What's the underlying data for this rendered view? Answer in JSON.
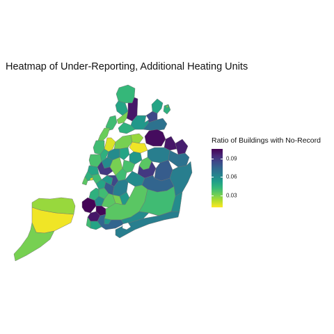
{
  "title": "Heatmap of Under-Reporting, Additional Heating Units",
  "legend": {
    "title": "Ratio of Buildings with No-Record",
    "ticks": [
      {
        "label": "0.09",
        "value": 0.09
      },
      {
        "label": "0.06",
        "value": 0.06
      },
      {
        "label": "0.03",
        "value": 0.03
      }
    ],
    "scale_min": 0.01,
    "scale_max": 0.106,
    "palette": "viridis (reversed)",
    "color_stops": [
      "#fde725",
      "#b5de2b",
      "#6ece58",
      "#35b779",
      "#1f9e89",
      "#26828e",
      "#31688e",
      "#3e4989",
      "#482878",
      "#440154"
    ]
  },
  "chart_data": {
    "type": "heatmap",
    "subtype": "choropleth",
    "title": "Heatmap of Under-Reporting, Additional Heating Units",
    "color_scale": {
      "title": "Ratio of Buildings with No-Record",
      "range": [
        0.01,
        0.106
      ],
      "ticks": [
        0.03,
        0.06,
        0.09
      ],
      "legend_position": "right"
    },
    "grid": false,
    "regions": [
      {
        "id": "si-north",
        "value": 0.025
      },
      {
        "id": "si-mid",
        "value": 0.012
      },
      {
        "id": "si-south",
        "value": 0.03
      },
      {
        "id": "bx-riverdale",
        "value": 0.042
      },
      {
        "id": "bx-fieldston",
        "value": 0.05
      },
      {
        "id": "bx-wakefield",
        "value": 0.1
      },
      {
        "id": "bx-coop",
        "value": 0.05
      },
      {
        "id": "bx-pelham",
        "value": 0.045
      },
      {
        "id": "bx-kingsbridge",
        "value": 0.03
      },
      {
        "id": "bx-fordham",
        "value": 0.055
      },
      {
        "id": "bx-parkchester",
        "value": 0.085
      },
      {
        "id": "bx-soundview",
        "value": 0.07
      },
      {
        "id": "bx-southbronx",
        "value": 0.045
      },
      {
        "id": "mn-inwood",
        "value": 0.04
      },
      {
        "id": "mn-washhts",
        "value": 0.032
      },
      {
        "id": "mn-harlem",
        "value": 0.015
      },
      {
        "id": "mn-uws",
        "value": 0.04
      },
      {
        "id": "mn-ues",
        "value": 0.045
      },
      {
        "id": "mn-midtown",
        "value": 0.038
      },
      {
        "id": "mn-chelsea",
        "value": 0.05
      },
      {
        "id": "mn-village",
        "value": 0.045
      },
      {
        "id": "mn-lower",
        "value": 0.04
      },
      {
        "id": "mn-fidi",
        "value": 0.035
      },
      {
        "id": "qn-astoria",
        "value": 0.03
      },
      {
        "id": "qn-lic",
        "value": 0.06
      },
      {
        "id": "qn-laguardia",
        "value": 0.025
      },
      {
        "id": "qn-flushing",
        "value": 0.103
      },
      {
        "id": "qn-bayside",
        "value": 0.1
      },
      {
        "id": "qn-littleneck",
        "value": 0.098
      },
      {
        "id": "qn-jackheights",
        "value": 0.012
      },
      {
        "id": "qn-elmhurst",
        "value": 0.05
      },
      {
        "id": "qn-corona",
        "value": 0.055
      },
      {
        "id": "qn-freshmeadows",
        "value": 0.065
      },
      {
        "id": "qn-glenoaks",
        "value": 0.07
      },
      {
        "id": "qn-woodside",
        "value": 0.035
      },
      {
        "id": "qn-forest",
        "value": 0.038
      },
      {
        "id": "qn-kewgardens",
        "value": 0.09
      },
      {
        "id": "qn-jamaica",
        "value": 0.078
      },
      {
        "id": "qn-queensvillage",
        "value": 0.065
      },
      {
        "id": "qn-ridgewood",
        "value": 0.04
      },
      {
        "id": "qn-ozone",
        "value": 0.06
      },
      {
        "id": "qn-southjamaica",
        "value": 0.075
      },
      {
        "id": "qn-rockaway",
        "value": 0.065
      },
      {
        "id": "bk-greenpoint",
        "value": 0.06
      },
      {
        "id": "bk-williamsburg",
        "value": 0.09
      },
      {
        "id": "bk-bushwick",
        "value": 0.03
      },
      {
        "id": "bk-brooklynhts",
        "value": 0.05
      },
      {
        "id": "bk-fortgreene",
        "value": 0.055
      },
      {
        "id": "bk-bedstuy",
        "value": 0.085
      },
      {
        "id": "bk-parkslope",
        "value": 0.04
      },
      {
        "id": "bk-crownhts",
        "value": 0.078
      },
      {
        "id": "bk-eastny",
        "value": 0.065
      },
      {
        "id": "bk-redhook",
        "value": 0.045
      },
      {
        "id": "bk-sunsetpark",
        "value": 0.06
      },
      {
        "id": "bk-boropark",
        "value": 0.105
      },
      {
        "id": "bk-flatbush",
        "value": 0.035
      },
      {
        "id": "bk-eastflatbush",
        "value": 0.03
      },
      {
        "id": "bk-brownsville",
        "value": 0.055
      },
      {
        "id": "bk-bayridge",
        "value": 0.105
      },
      {
        "id": "bk-dykerhts",
        "value": 0.1
      },
      {
        "id": "bk-bensonhurst",
        "value": 0.05
      },
      {
        "id": "bk-midwood",
        "value": 0.035
      },
      {
        "id": "bk-flatlands",
        "value": 0.04
      },
      {
        "id": "bk-canarsie",
        "value": 0.06
      },
      {
        "id": "bk-coneyisland",
        "value": 0.075
      },
      {
        "id": "bk-sheepshead",
        "value": 0.055
      },
      {
        "id": "bk-gravesend",
        "value": 0.04
      },
      {
        "id": "bk-brighton",
        "value": 0.06
      }
    ]
  }
}
